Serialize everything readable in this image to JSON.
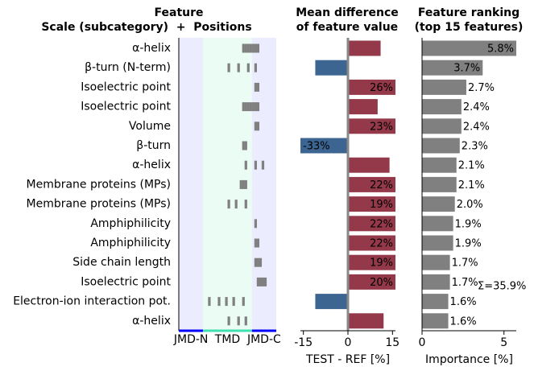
{
  "chart_data": [
    {
      "type": "feature_map",
      "title": "Feature",
      "subtitle": "Scale (subcategory)  +  Positions",
      "categories": [
        "α-helix",
        "β-turn (N-term)",
        "Isoelectric point",
        "Isoelectric point",
        "Volume",
        "β-turn",
        "α-helix",
        "Membrane proteins (MPs)",
        "Membrane proteins (MPs)",
        "Amphiphilicity",
        "Amphiphilicity",
        "Side chain length",
        "Isoelectric point",
        "Electron-ion interaction pot.",
        "α-helix"
      ],
      "positions": [
        [
          26,
          27,
          28,
          29,
          30,
          31,
          32
        ],
        [
          20,
          24,
          28,
          31
        ],
        [
          31,
          32
        ],
        [
          26,
          27,
          28,
          29,
          30,
          31,
          32
        ],
        [
          31,
          32
        ],
        [
          26,
          27
        ],
        [
          27,
          31,
          34
        ],
        [
          25,
          26,
          27
        ],
        [
          20,
          23,
          27
        ],
        [
          31
        ],
        [
          31,
          32
        ],
        [
          31,
          32,
          33
        ],
        [
          32,
          33,
          34,
          35
        ],
        [
          12,
          16,
          19,
          22,
          26
        ],
        [
          20,
          24,
          27
        ]
      ],
      "xlim": [
        0,
        40
      ],
      "color": "#808080",
      "regions": [
        {
          "label": "JMD-N",
          "range": [
            0,
            10
          ],
          "color": "#0000ff",
          "background": "#ececff"
        },
        {
          "label": "TMD",
          "range": [
            10,
            30
          ],
          "color": "#40e0b0",
          "background": "#eafcf4"
        },
        {
          "label": "JMD-C",
          "range": [
            30,
            40
          ],
          "color": "#0000ff",
          "background": "#ececff"
        }
      ]
    },
    {
      "type": "barh",
      "title": [
        "Mean difference",
        "of feature value"
      ],
      "values": [
        11,
        -11,
        26,
        10,
        23,
        -33,
        14,
        22,
        19,
        22,
        22,
        19,
        20,
        -11,
        12
      ],
      "value_labels": [
        null,
        null,
        "26%",
        null,
        "23%",
        "-33%",
        null,
        "22%",
        "19%",
        "22%",
        "22%",
        "19%",
        "20%",
        null,
        null
      ],
      "colors": {
        "positive": "#93394a",
        "negative": "#3d6592"
      },
      "xlim": [
        -16,
        16
      ],
      "xticks": [
        -15,
        0,
        15
      ],
      "xlabel": "TEST - REF [%]"
    },
    {
      "type": "barh",
      "title": [
        "Feature ranking",
        "(top 15 features)"
      ],
      "values": [
        5.8,
        3.7,
        2.7,
        2.4,
        2.4,
        2.3,
        2.1,
        2.1,
        2.0,
        1.9,
        1.9,
        1.7,
        1.7,
        1.6,
        1.6
      ],
      "value_labels": [
        "5.8%",
        "3.7%",
        "2.7%",
        "2.4%",
        "2.4%",
        "2.3%",
        "2.1%",
        "2.1%",
        "2.0%",
        "1.9%",
        "1.9%",
        "1.7%",
        "1.7%",
        "1.6%",
        "1.6%"
      ],
      "colors": {
        "positive": "#808080",
        "negative": "#808080"
      },
      "xlim": [
        0,
        5.75
      ],
      "xticks": [
        0,
        5
      ],
      "xlabel": "Importance [%]",
      "annotation": "Σ=35.9%"
    }
  ]
}
